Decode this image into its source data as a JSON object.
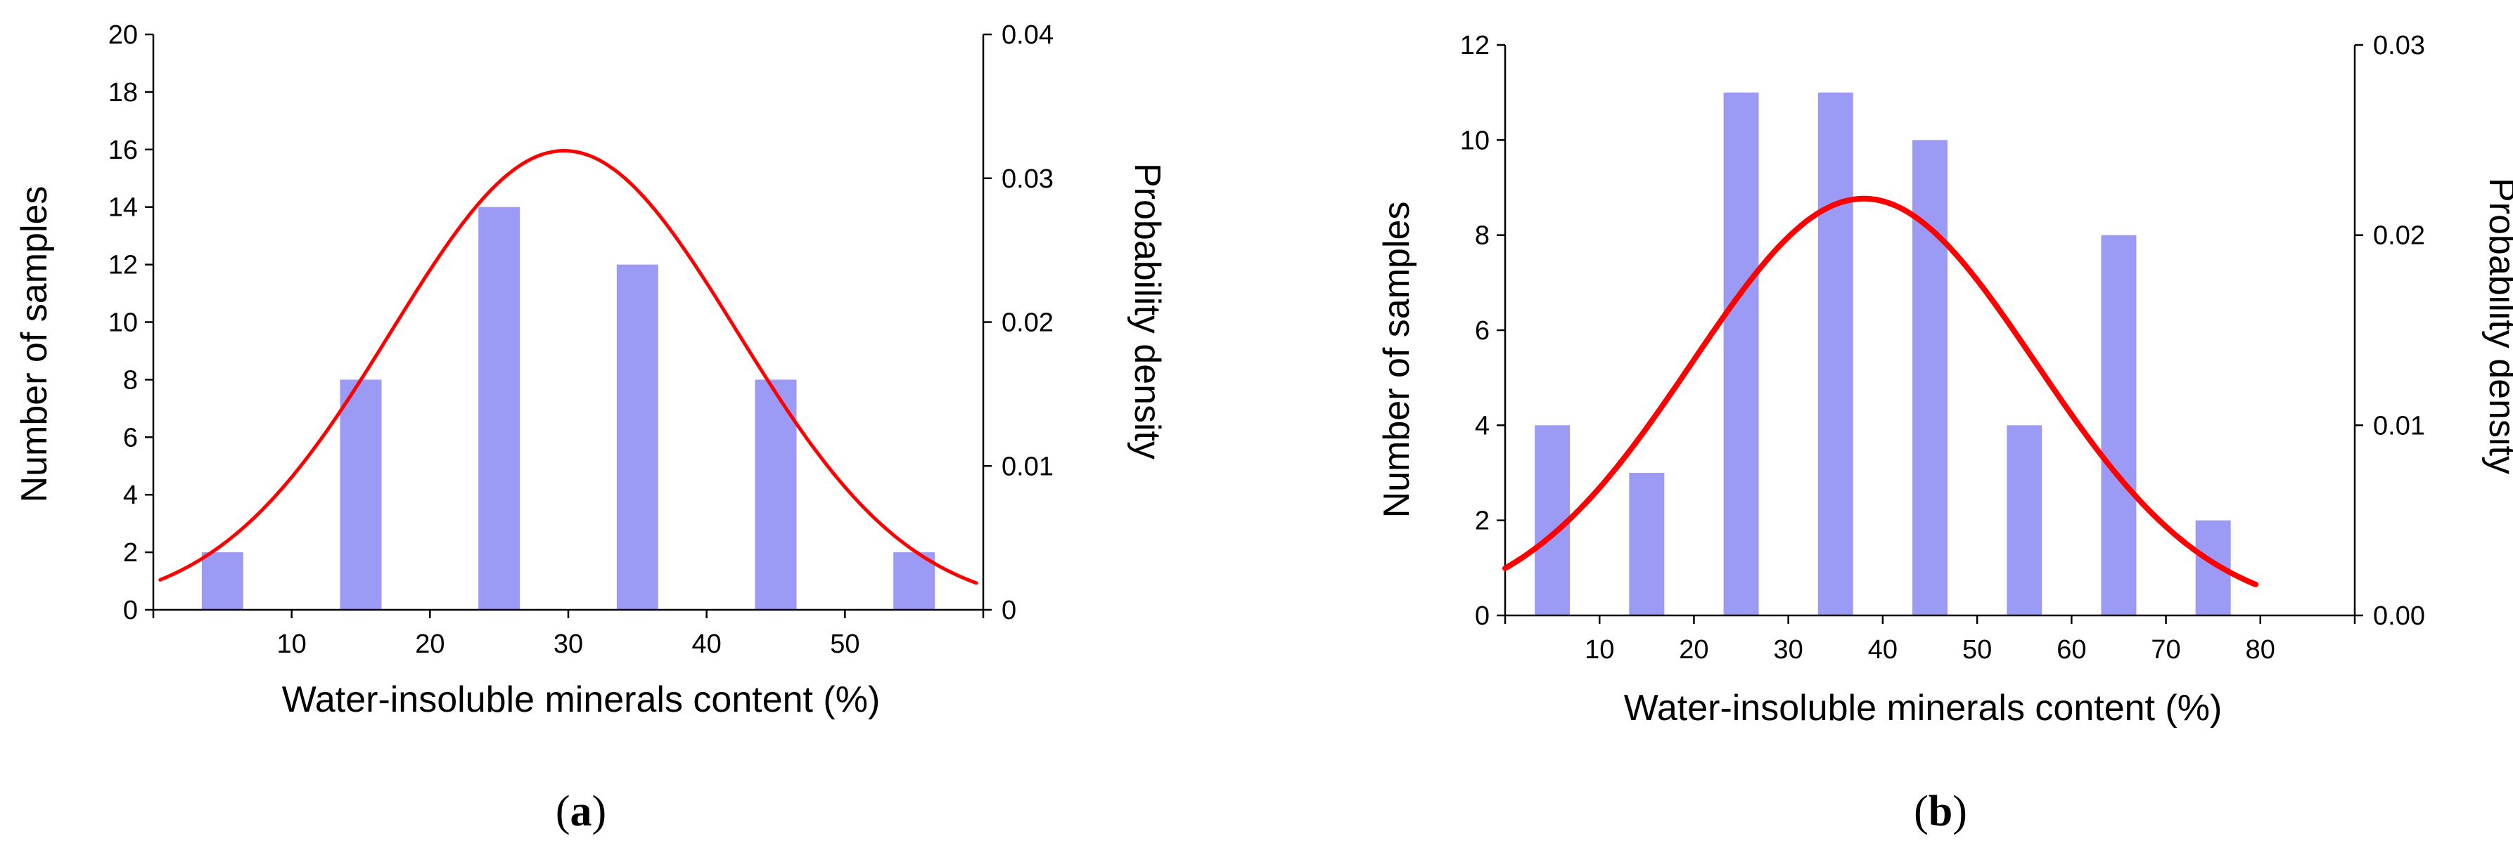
{
  "chart_data": [
    {
      "type": "bar",
      "panel_label": "a",
      "xlabel": "Water-insoluble minerals content (%)",
      "ylabel": "Number of samples",
      "y2label": "Probability density",
      "xlim": [
        0,
        60
      ],
      "xticks": [
        10,
        20,
        30,
        40,
        50
      ],
      "ylim": [
        0,
        20
      ],
      "yticks": [
        0,
        2,
        4,
        6,
        8,
        10,
        12,
        14,
        16,
        18,
        20
      ],
      "y2lim": [
        0,
        0.04
      ],
      "y2ticks": [
        "0",
        "0.01",
        "0.02",
        "0.03",
        "0.04"
      ],
      "bars": {
        "x": [
          5,
          15,
          25,
          35,
          45,
          55
        ],
        "values": [
          2,
          8,
          14,
          12,
          8,
          2
        ],
        "color": "#9b9bf6"
      },
      "curve": {
        "name": "normal distribution fit",
        "mean": 29.7,
        "sd": 12.5,
        "x_range": [
          0.5,
          59.5
        ],
        "color": "#ff0000"
      }
    },
    {
      "type": "bar",
      "panel_label": "b",
      "xlabel": "Water-insoluble minerals content (%)",
      "ylabel": "Number of samples",
      "y2label": "Probability density",
      "xlim": [
        0,
        90
      ],
      "xticks": [
        10,
        20,
        30,
        40,
        50,
        60,
        70,
        80
      ],
      "ylim": [
        0,
        12
      ],
      "yticks": [
        0,
        2,
        4,
        6,
        8,
        10,
        12
      ],
      "y2lim": [
        0,
        0.03
      ],
      "y2ticks": [
        "0.00",
        "0.01",
        "0.02",
        "0.03"
      ],
      "bars": {
        "x": [
          5,
          15,
          25,
          35,
          45,
          55,
          65,
          75
        ],
        "values": [
          4,
          3,
          11,
          11,
          10,
          4,
          8,
          2
        ],
        "color": "#9b9bf6"
      },
      "curve": {
        "name": "normal distribution fit",
        "mean": 38,
        "sd": 18.2,
        "x_range": [
          0,
          79.5
        ],
        "color": "#ff0000"
      }
    }
  ]
}
